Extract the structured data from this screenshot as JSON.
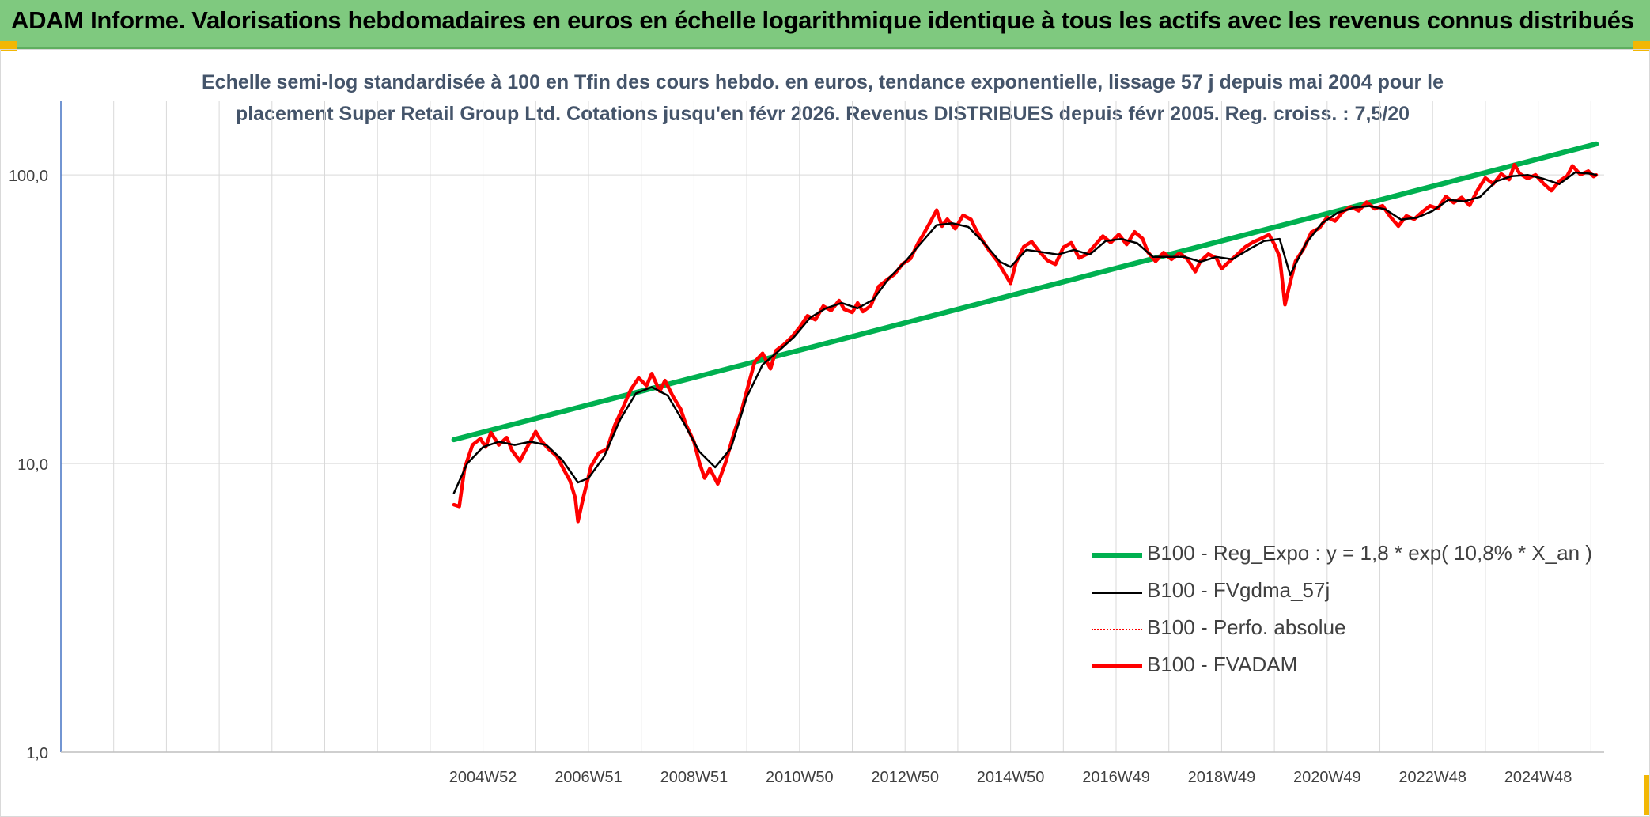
{
  "header": {
    "title": "ADAM Informe. Valorisations hebdomadaires en euros en échelle logarithmique identique à tous les actifs avec les revenus connus distribués"
  },
  "colors": {
    "banner": "#7fc97f",
    "trend": "#00b050",
    "smooth": "#000000",
    "perfo": "#ff0000",
    "fvadam": "#ff0000",
    "grid": "#d9d9d9",
    "title_text": "#44546a"
  },
  "chart_data": {
    "type": "line",
    "title_line1": "Echelle semi-log standardisée à 100 en Tfin des cours hebdo. en euros, tendance exponentielle, lissage 57 j depuis mai 2004 pour le",
    "title_line2": "placement Super Retail Group Ltd. Cotations jusqu'en févr 2026. Revenus DISTRIBUES depuis févr 2005. Reg. croiss. : 7,5/20",
    "y_scale": "log",
    "ylim": [
      1,
      180
    ],
    "y_ticks": [
      {
        "value": 1,
        "label": "1,0"
      },
      {
        "value": 10,
        "label": "10,0"
      },
      {
        "value": 100,
        "label": "100,0"
      }
    ],
    "xlim": [
      1997.0,
      2026.25
    ],
    "x_ticks": [
      {
        "value": 2005.0,
        "label": "2004W52"
      },
      {
        "value": 2007.0,
        "label": "2006W51"
      },
      {
        "value": 2009.0,
        "label": "2008W51"
      },
      {
        "value": 2011.0,
        "label": "2010W50"
      },
      {
        "value": 2013.0,
        "label": "2012W50"
      },
      {
        "value": 2015.0,
        "label": "2014W50"
      },
      {
        "value": 2017.0,
        "label": "2016W49"
      },
      {
        "value": 2019.0,
        "label": "2018W49"
      },
      {
        "value": 2021.0,
        "label": "2020W49"
      },
      {
        "value": 2023.0,
        "label": "2022W48"
      },
      {
        "value": 2025.0,
        "label": "2024W48"
      }
    ],
    "grid": true,
    "legend_position": "bottom-right",
    "series": [
      {
        "name": "B100 - Reg_Expo : y = 1,8 * exp( 10,8% *  X_an )",
        "style": "trend",
        "points": [
          [
            2004.45,
            12.1
          ],
          [
            2026.1,
            128
          ]
        ]
      },
      {
        "name": "B100 - FVgdma_57j",
        "style": "smooth",
        "points": [
          [
            2004.45,
            7.9
          ],
          [
            2004.7,
            10.0
          ],
          [
            2005.0,
            11.4
          ],
          [
            2005.3,
            11.9
          ],
          [
            2005.6,
            11.6
          ],
          [
            2005.9,
            11.9
          ],
          [
            2006.2,
            11.6
          ],
          [
            2006.5,
            10.3
          ],
          [
            2006.8,
            8.6
          ],
          [
            2007.0,
            8.9
          ],
          [
            2007.3,
            10.6
          ],
          [
            2007.6,
            14.2
          ],
          [
            2007.9,
            17.5
          ],
          [
            2008.2,
            18.4
          ],
          [
            2008.5,
            17.2
          ],
          [
            2008.8,
            13.9
          ],
          [
            2009.1,
            11.0
          ],
          [
            2009.4,
            9.7
          ],
          [
            2009.7,
            11.3
          ],
          [
            2010.0,
            17.0
          ],
          [
            2010.3,
            22.0
          ],
          [
            2010.6,
            24.5
          ],
          [
            2010.9,
            27.5
          ],
          [
            2011.2,
            32.0
          ],
          [
            2011.5,
            34.5
          ],
          [
            2011.8,
            36.0
          ],
          [
            2012.1,
            34.5
          ],
          [
            2012.4,
            37.0
          ],
          [
            2012.7,
            44.0
          ],
          [
            2013.0,
            50.0
          ],
          [
            2013.3,
            58.0
          ],
          [
            2013.6,
            67.0
          ],
          [
            2013.9,
            68.0
          ],
          [
            2014.2,
            66.0
          ],
          [
            2014.5,
            58.0
          ],
          [
            2014.8,
            50.0
          ],
          [
            2015.0,
            48.0
          ],
          [
            2015.3,
            55.0
          ],
          [
            2015.6,
            54.0
          ],
          [
            2015.9,
            53.0
          ],
          [
            2016.2,
            55.0
          ],
          [
            2016.5,
            53.0
          ],
          [
            2016.8,
            59.0
          ],
          [
            2017.1,
            60.0
          ],
          [
            2017.4,
            58.0
          ],
          [
            2017.7,
            52.0
          ],
          [
            2018.0,
            52.0
          ],
          [
            2018.3,
            52.0
          ],
          [
            2018.6,
            50.0
          ],
          [
            2018.9,
            52.0
          ],
          [
            2019.2,
            51.0
          ],
          [
            2019.5,
            55.0
          ],
          [
            2019.8,
            59.0
          ],
          [
            2020.1,
            60.0
          ],
          [
            2020.3,
            45.0
          ],
          [
            2020.6,
            58.0
          ],
          [
            2020.9,
            68.0
          ],
          [
            2021.2,
            74.0
          ],
          [
            2021.5,
            77.0
          ],
          [
            2021.8,
            78.0
          ],
          [
            2022.1,
            76.0
          ],
          [
            2022.4,
            70.0
          ],
          [
            2022.7,
            71.0
          ],
          [
            2023.0,
            75.0
          ],
          [
            2023.3,
            82.0
          ],
          [
            2023.6,
            81.0
          ],
          [
            2023.9,
            84.0
          ],
          [
            2024.2,
            95.0
          ],
          [
            2024.5,
            99.0
          ],
          [
            2024.8,
            100.0
          ],
          [
            2025.1,
            97.0
          ],
          [
            2025.4,
            93.0
          ],
          [
            2025.7,
            102.0
          ],
          [
            2026.0,
            101.0
          ],
          [
            2026.1,
            100.0
          ]
        ]
      },
      {
        "name": "B100 - Perfo. absolue",
        "style": "perfo",
        "points": []
      },
      {
        "name": "B100 - FVADAM",
        "style": "fvadam",
        "points": [
          [
            2004.45,
            7.2
          ],
          [
            2004.55,
            7.1
          ],
          [
            2004.65,
            9.6
          ],
          [
            2004.8,
            11.6
          ],
          [
            2004.95,
            12.2
          ],
          [
            2005.05,
            11.4
          ],
          [
            2005.15,
            12.8
          ],
          [
            2005.3,
            11.6
          ],
          [
            2005.45,
            12.3
          ],
          [
            2005.55,
            11.1
          ],
          [
            2005.7,
            10.2
          ],
          [
            2005.85,
            11.5
          ],
          [
            2006.0,
            12.9
          ],
          [
            2006.1,
            12.0
          ],
          [
            2006.25,
            11.2
          ],
          [
            2006.4,
            10.6
          ],
          [
            2006.55,
            9.4
          ],
          [
            2006.65,
            8.7
          ],
          [
            2006.75,
            7.6
          ],
          [
            2006.8,
            6.3
          ],
          [
            2006.9,
            7.6
          ],
          [
            2007.05,
            9.8
          ],
          [
            2007.2,
            10.9
          ],
          [
            2007.35,
            11.2
          ],
          [
            2007.5,
            13.6
          ],
          [
            2007.65,
            15.6
          ],
          [
            2007.8,
            18.0
          ],
          [
            2007.95,
            19.8
          ],
          [
            2008.1,
            18.6
          ],
          [
            2008.2,
            20.5
          ],
          [
            2008.35,
            17.8
          ],
          [
            2008.45,
            19.4
          ],
          [
            2008.6,
            17.1
          ],
          [
            2008.75,
            15.4
          ],
          [
            2008.85,
            13.6
          ],
          [
            2009.0,
            11.9
          ],
          [
            2009.1,
            10.1
          ],
          [
            2009.2,
            8.9
          ],
          [
            2009.3,
            9.6
          ],
          [
            2009.45,
            8.5
          ],
          [
            2009.6,
            10.1
          ],
          [
            2009.75,
            12.6
          ],
          [
            2009.9,
            15.2
          ],
          [
            2010.05,
            19.3
          ],
          [
            2010.15,
            22.5
          ],
          [
            2010.3,
            24.1
          ],
          [
            2010.45,
            21.3
          ],
          [
            2010.55,
            24.6
          ],
          [
            2010.7,
            25.8
          ],
          [
            2010.85,
            27.4
          ],
          [
            2011.0,
            29.6
          ],
          [
            2011.15,
            32.5
          ],
          [
            2011.3,
            31.5
          ],
          [
            2011.45,
            35.1
          ],
          [
            2011.6,
            33.9
          ],
          [
            2011.75,
            36.7
          ],
          [
            2011.85,
            34.2
          ],
          [
            2012.0,
            33.4
          ],
          [
            2012.1,
            36.0
          ],
          [
            2012.2,
            33.6
          ],
          [
            2012.35,
            35.2
          ],
          [
            2012.5,
            41.1
          ],
          [
            2012.65,
            43.2
          ],
          [
            2012.8,
            45.3
          ],
          [
            2012.95,
            49.1
          ],
          [
            2013.1,
            51.2
          ],
          [
            2013.25,
            58.2
          ],
          [
            2013.35,
            62.4
          ],
          [
            2013.5,
            69.8
          ],
          [
            2013.6,
            75.5
          ],
          [
            2013.7,
            66.4
          ],
          [
            2013.8,
            70.2
          ],
          [
            2013.95,
            65.1
          ],
          [
            2014.1,
            72.5
          ],
          [
            2014.25,
            70.1
          ],
          [
            2014.35,
            64.2
          ],
          [
            2014.5,
            58.0
          ],
          [
            2014.6,
            54.5
          ],
          [
            2014.75,
            50.3
          ],
          [
            2014.9,
            45.2
          ],
          [
            2015.0,
            42.1
          ],
          [
            2015.1,
            49.5
          ],
          [
            2015.25,
            56.4
          ],
          [
            2015.4,
            58.7
          ],
          [
            2015.55,
            54.1
          ],
          [
            2015.7,
            50.5
          ],
          [
            2015.85,
            49.0
          ],
          [
            2016.0,
            56.1
          ],
          [
            2016.15,
            58.2
          ],
          [
            2016.3,
            51.5
          ],
          [
            2016.45,
            53.2
          ],
          [
            2016.6,
            57.1
          ],
          [
            2016.75,
            61.4
          ],
          [
            2016.9,
            58.3
          ],
          [
            2017.05,
            62.2
          ],
          [
            2017.2,
            57.4
          ],
          [
            2017.35,
            63.5
          ],
          [
            2017.5,
            60.2
          ],
          [
            2017.6,
            54.1
          ],
          [
            2017.75,
            50.2
          ],
          [
            2017.9,
            53.8
          ],
          [
            2018.05,
            51.0
          ],
          [
            2018.2,
            53.6
          ],
          [
            2018.35,
            51.1
          ],
          [
            2018.5,
            46.2
          ],
          [
            2018.6,
            50.3
          ],
          [
            2018.75,
            53.2
          ],
          [
            2018.9,
            51.5
          ],
          [
            2019.0,
            47.3
          ],
          [
            2019.15,
            50.2
          ],
          [
            2019.3,
            53.1
          ],
          [
            2019.45,
            56.3
          ],
          [
            2019.6,
            58.5
          ],
          [
            2019.75,
            60.2
          ],
          [
            2019.9,
            62.1
          ],
          [
            2020.0,
            57.5
          ],
          [
            2020.1,
            52.0
          ],
          [
            2020.2,
            35.5
          ],
          [
            2020.28,
            41.0
          ],
          [
            2020.4,
            50.2
          ],
          [
            2020.55,
            55.3
          ],
          [
            2020.7,
            63.2
          ],
          [
            2020.85,
            65.4
          ],
          [
            2021.0,
            71.3
          ],
          [
            2021.15,
            69.2
          ],
          [
            2021.3,
            74.6
          ],
          [
            2021.45,
            77.5
          ],
          [
            2021.6,
            75.1
          ],
          [
            2021.75,
            80.5
          ],
          [
            2021.9,
            76.3
          ],
          [
            2022.05,
            78.2
          ],
          [
            2022.2,
            71.5
          ],
          [
            2022.35,
            66.4
          ],
          [
            2022.5,
            72.1
          ],
          [
            2022.65,
            70.2
          ],
          [
            2022.8,
            74.4
          ],
          [
            2022.95,
            78.1
          ],
          [
            2023.1,
            76.5
          ],
          [
            2023.25,
            84.2
          ],
          [
            2023.4,
            80.1
          ],
          [
            2023.55,
            83.5
          ],
          [
            2023.7,
            78.4
          ],
          [
            2023.85,
            88.5
          ],
          [
            2024.0,
            97.6
          ],
          [
            2024.15,
            93.1
          ],
          [
            2024.3,
            100.8
          ],
          [
            2024.45,
            96.3
          ],
          [
            2024.55,
            108.5
          ],
          [
            2024.65,
            101.0
          ],
          [
            2024.8,
            97.2
          ],
          [
            2024.95,
            100.1
          ],
          [
            2025.1,
            93.4
          ],
          [
            2025.25,
            88.2
          ],
          [
            2025.4,
            95.1
          ],
          [
            2025.55,
            99.3
          ],
          [
            2025.65,
            107.5
          ],
          [
            2025.8,
            100.2
          ],
          [
            2025.95,
            103.1
          ],
          [
            2026.05,
            98.7
          ],
          [
            2026.1,
            100.0
          ]
        ]
      }
    ]
  }
}
